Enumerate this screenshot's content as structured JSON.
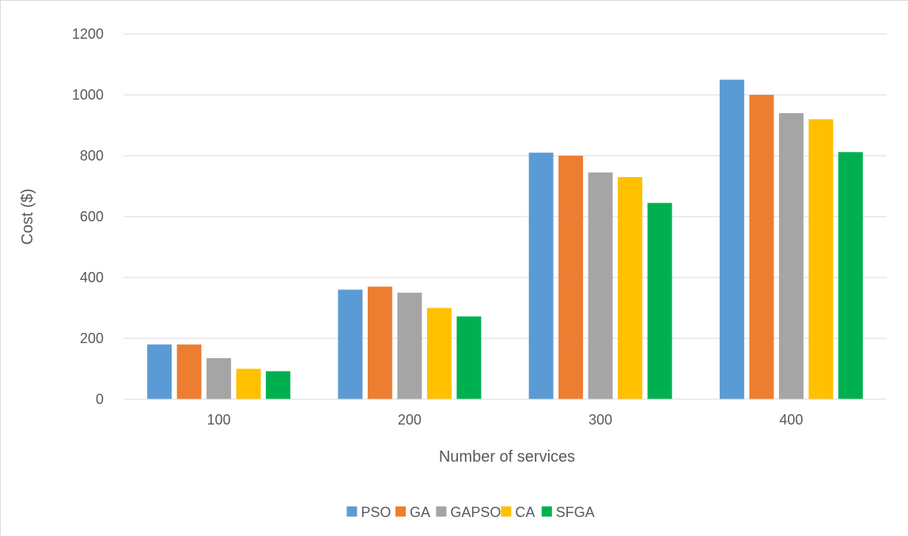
{
  "chart_data": {
    "type": "bar",
    "categories": [
      "100",
      "200",
      "300",
      "400"
    ],
    "series": [
      {
        "name": "PSO",
        "color": "#5b9bd5",
        "values": [
          180,
          360,
          810,
          1050
        ]
      },
      {
        "name": "GA",
        "color": "#ed7d31",
        "values": [
          180,
          370,
          800,
          1000
        ]
      },
      {
        "name": "GAPSO",
        "color": "#a5a5a5",
        "values": [
          135,
          350,
          745,
          940
        ]
      },
      {
        "name": "CA",
        "color": "#ffc000",
        "values": [
          100,
          300,
          730,
          920
        ]
      },
      {
        "name": "SFGA",
        "color": "#00b050",
        "values": [
          92,
          272,
          645,
          812
        ]
      }
    ],
    "xlabel": "Number of services",
    "ylabel": "Cost ($)",
    "ylim": [
      0,
      1200
    ],
    "yticks": [
      0,
      200,
      400,
      600,
      800,
      1000,
      1200
    ],
    "grid": true,
    "legend_position": "bottom"
  }
}
